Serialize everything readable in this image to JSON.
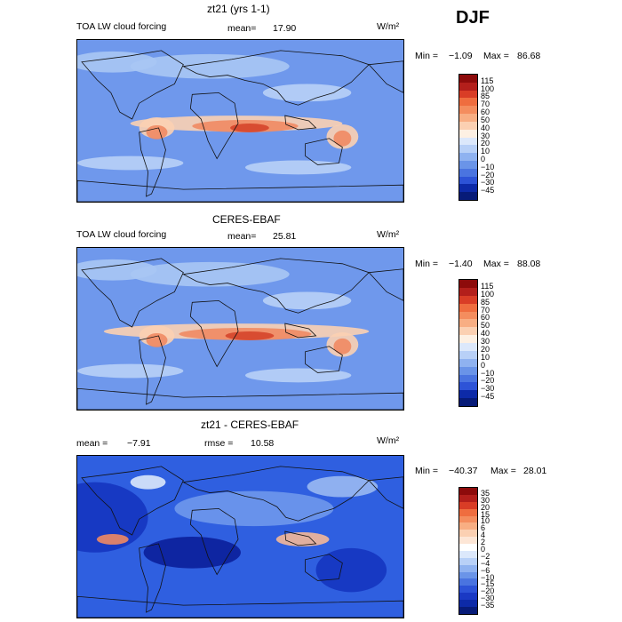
{
  "season": "DJF",
  "colors": {
    "ocean_base": "#6f98ec",
    "land_base": "#a9c6f4",
    "warm": "#f08a63",
    "hot": "#d5452b",
    "cool": "#1f49d8",
    "deep": "#0b1f9a",
    "coast": "#111111"
  },
  "panels": [
    {
      "title": "zt21 (yrs 1-1)",
      "left_label": "TOA LW cloud forcing",
      "mean_label": "mean=",
      "mean": "17.90",
      "unit": "W/m²",
      "min_label": "Min =",
      "min": "−1.09",
      "max_label": "Max =",
      "max": "86.68",
      "colorbar_labels": [
        "115",
        "100",
        "85",
        "70",
        "60",
        "50",
        "40",
        "30",
        "20",
        "10",
        "0",
        "−10",
        "−20",
        "−30",
        "−45"
      ],
      "colorbar_colors": [
        "#8d0b0b",
        "#b31f1b",
        "#d93d26",
        "#ef6d3f",
        "#f48d5e",
        "#f8ae83",
        "#fbd0b2",
        "#fdf0e3",
        "#dce8fb",
        "#b8d0f7",
        "#8fb2f0",
        "#6a94e8",
        "#4a74e0",
        "#2d53d7",
        "#0d2aa8",
        "#071b78"
      ]
    },
    {
      "title": "CERES-EBAF",
      "left_label": "TOA LW cloud forcing",
      "mean_label": "mean=",
      "mean": "25.81",
      "unit": "W/m²",
      "min_label": "Min =",
      "min": "−1.40",
      "max_label": "Max =",
      "max": "88.08",
      "colorbar_labels": [
        "115",
        "100",
        "85",
        "70",
        "60",
        "50",
        "40",
        "30",
        "20",
        "10",
        "0",
        "−10",
        "−20",
        "−30",
        "−45"
      ],
      "colorbar_colors": [
        "#8d0b0b",
        "#b31f1b",
        "#d93d26",
        "#ef6d3f",
        "#f48d5e",
        "#f8ae83",
        "#fbd0b2",
        "#fdf0e3",
        "#dce8fb",
        "#b8d0f7",
        "#8fb2f0",
        "#6a94e8",
        "#4a74e0",
        "#2d53d7",
        "#0d2aa8",
        "#071b78"
      ]
    },
    {
      "title": "zt21 - CERES-EBAF",
      "left_label": "mean =",
      "mean": "−7.91",
      "rmse_label": "rmse =",
      "rmse": "10.58",
      "unit": "W/m²",
      "min_label": "Min =",
      "min": "−40.37",
      "max_label": "Max =",
      "max": "28.01",
      "colorbar_labels": [
        "35",
        "30",
        "20",
        "15",
        "10",
        "6",
        "4",
        "2",
        "0",
        "−2",
        "−4",
        "−6",
        "−10",
        "−15",
        "−20",
        "−30",
        "−35"
      ],
      "colorbar_colors": [
        "#8d0b0b",
        "#b31f1b",
        "#d93d26",
        "#ef6d3f",
        "#f48d5e",
        "#f8ae83",
        "#fbd0b2",
        "#fde6d6",
        "#ffffff",
        "#dce8fb",
        "#b8d0f7",
        "#8fb2f0",
        "#6a94e8",
        "#4a74e0",
        "#2d53d7",
        "#1a39c4",
        "#0d2aa8",
        "#071b78"
      ]
    }
  ]
}
